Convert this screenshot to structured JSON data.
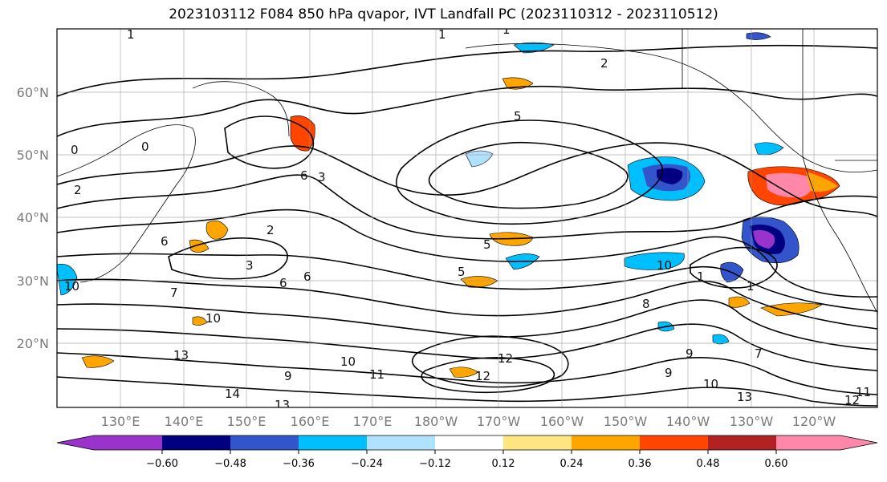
{
  "title": "2023103112 F084 850 hPa qvapor, IVT Landfall PC (2023110312 - 2023110512)",
  "map": {
    "lat_labels": [
      "60°N",
      "50°N",
      "40°N",
      "30°N",
      "20°N"
    ],
    "lon_labels": [
      "130°E",
      "140°E",
      "150°E",
      "160°E",
      "170°E",
      "180°W",
      "170°W",
      "160°W",
      "150°W",
      "140°W",
      "130°W",
      "120°W"
    ],
    "contour_labels": [
      "1",
      "1",
      "1",
      "2",
      "0",
      "0",
      "2",
      "5",
      "5",
      "6",
      "3",
      "6",
      "2",
      "3",
      "6",
      "6",
      "7",
      "10",
      "10",
      "10",
      "13",
      "14",
      "13",
      "9",
      "10",
      "11",
      "12",
      "12",
      "9",
      "9",
      "10",
      "13",
      "12",
      "11",
      "7",
      "1",
      "5",
      "1",
      "8"
    ]
  },
  "colorbar": {
    "ticks": [
      "−0.60",
      "−0.48",
      "−0.36",
      "−0.24",
      "−0.12",
      "0.12",
      "0.24",
      "0.36",
      "0.48",
      "0.60"
    ],
    "colors": [
      "#9933cc",
      "#000080",
      "#3355cc",
      "#00bfff",
      "#b0e2ff",
      "#ffffff",
      "#ffe680",
      "#ffa500",
      "#ff4500",
      "#b22222",
      "#ff88aa"
    ]
  }
}
